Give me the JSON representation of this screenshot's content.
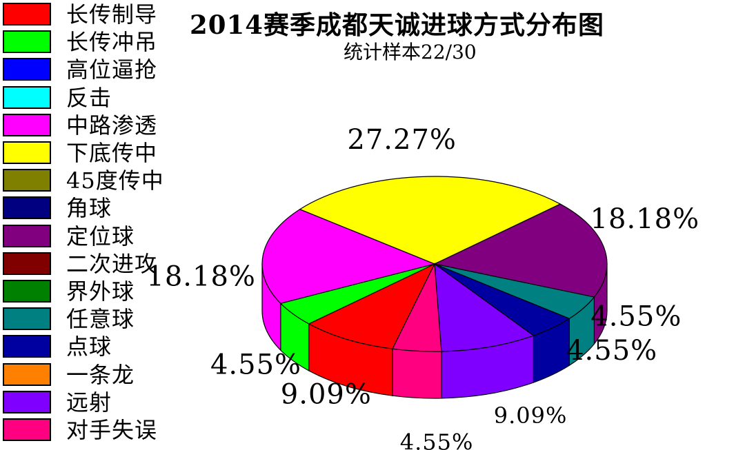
{
  "chart_data": {
    "type": "pie",
    "title": "2014赛季成都天诚进球方式分布图",
    "subtitle": "统计样本22/30",
    "legend_position": "left",
    "legend": [
      {
        "label": "长传制导",
        "color": "#ff0000"
      },
      {
        "label": "长传冲吊",
        "color": "#00ff00"
      },
      {
        "label": "高位逼抢",
        "color": "#0000ff"
      },
      {
        "label": "反击",
        "color": "#00ffff"
      },
      {
        "label": "中路渗透",
        "color": "#ff00ff"
      },
      {
        "label": "下底传中",
        "color": "#ffff00"
      },
      {
        "label": "45度传中",
        "color": "#808000"
      },
      {
        "label": "角球",
        "color": "#000080"
      },
      {
        "label": "定位球",
        "color": "#800080"
      },
      {
        "label": "二次进攻",
        "color": "#800000"
      },
      {
        "label": "界外球",
        "color": "#008000"
      },
      {
        "label": "任意球",
        "color": "#008080"
      },
      {
        "label": "点球",
        "color": "#0000a0"
      },
      {
        "label": "一条龙",
        "color": "#ff8000"
      },
      {
        "label": "远射",
        "color": "#8000ff"
      },
      {
        "label": "对手失误",
        "color": "#ff0080"
      }
    ],
    "slices": [
      {
        "label": "长传制导",
        "percent": 9.09,
        "value_label": "9.09%"
      },
      {
        "label": "长传冲吊",
        "percent": 4.55,
        "value_label": "4.55%"
      },
      {
        "label": "中路渗透",
        "percent": 18.18,
        "value_label": "18.18%"
      },
      {
        "label": "下底传中",
        "percent": 27.27,
        "value_label": "27.27%"
      },
      {
        "label": "定位球",
        "percent": 18.18,
        "value_label": "18.18%"
      },
      {
        "label": "任意球",
        "percent": 4.55,
        "value_label": "4.55%"
      },
      {
        "label": "点球",
        "percent": 4.55,
        "value_label": "4.55%"
      },
      {
        "label": "远射",
        "percent": 9.09,
        "value_label": "9.09%"
      },
      {
        "label": "对手失误",
        "percent": 4.55,
        "value_label": "4.55%"
      }
    ]
  }
}
